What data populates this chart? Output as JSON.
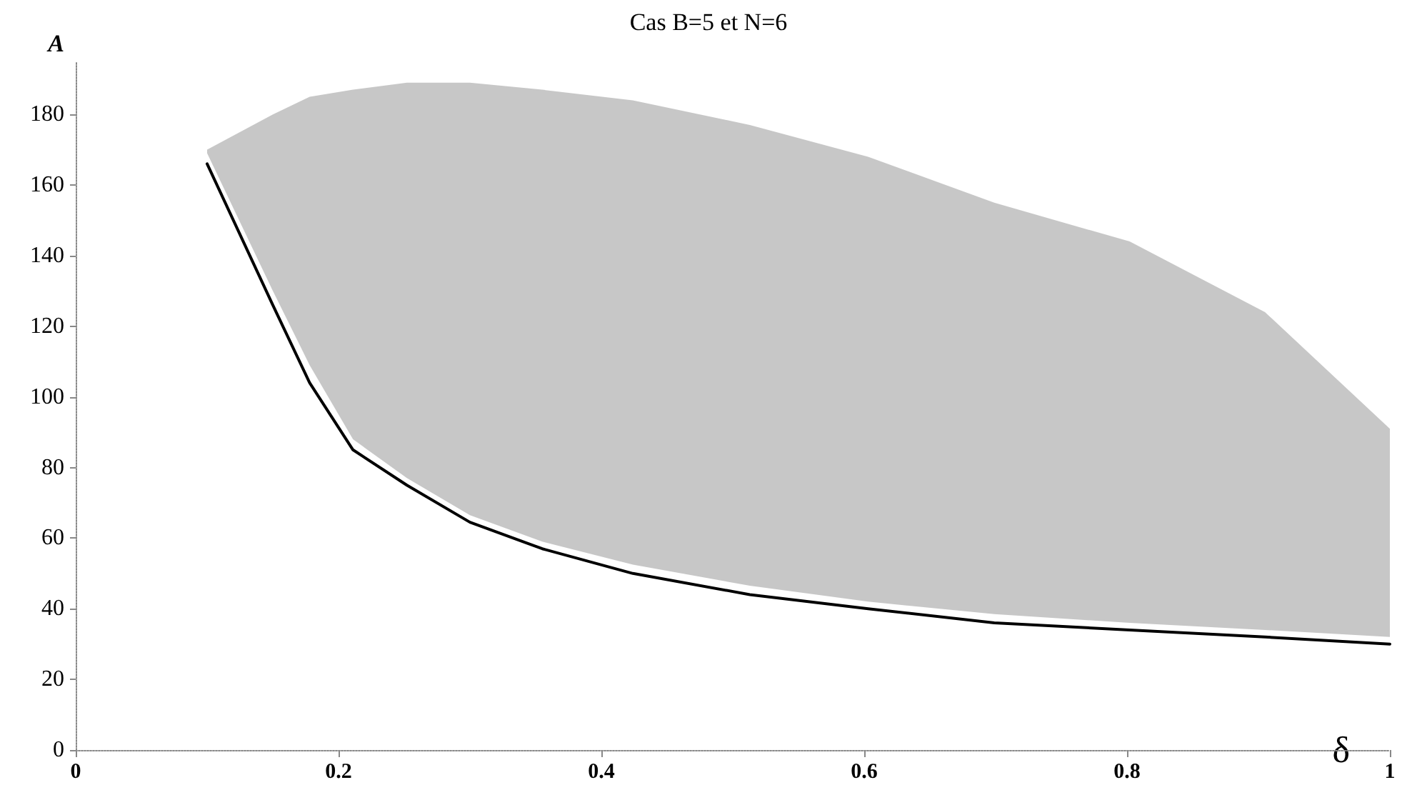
{
  "chart_data": {
    "type": "line",
    "title": "Cas B=5 et N=6",
    "xlabel": "δ",
    "ylabel": "A",
    "xlim": [
      0,
      1
    ],
    "xticks": [
      0,
      0.2,
      0.4,
      0.6,
      0.8,
      1
    ],
    "ylim": [
      0,
      195
    ],
    "yticks": [
      0,
      20,
      40,
      60,
      80,
      100,
      120,
      140,
      160,
      180
    ],
    "grid": false,
    "marker": "none",
    "line_style": "solid",
    "series": [
      {
        "type": "line",
        "color": "#000000",
        "x": [
          0.1,
          0.15,
          0.178,
          0.211,
          0.252,
          0.3,
          0.355,
          0.424,
          0.513,
          0.603,
          0.699,
          0.802,
          0.905,
          1.0
        ],
        "values": [
          166,
          126,
          104,
          85,
          75,
          64.5,
          57,
          50,
          44,
          40,
          36,
          34,
          32,
          30
        ],
        "lower": [
          169,
          130,
          109,
          88,
          77,
          66.5,
          59,
          52.5,
          46.5,
          42,
          38.5,
          36,
          34,
          32
        ],
        "upper": [
          170,
          180,
          185,
          187,
          189,
          189,
          187,
          184,
          177,
          168,
          155,
          144,
          124,
          91
        ]
      }
    ]
  }
}
